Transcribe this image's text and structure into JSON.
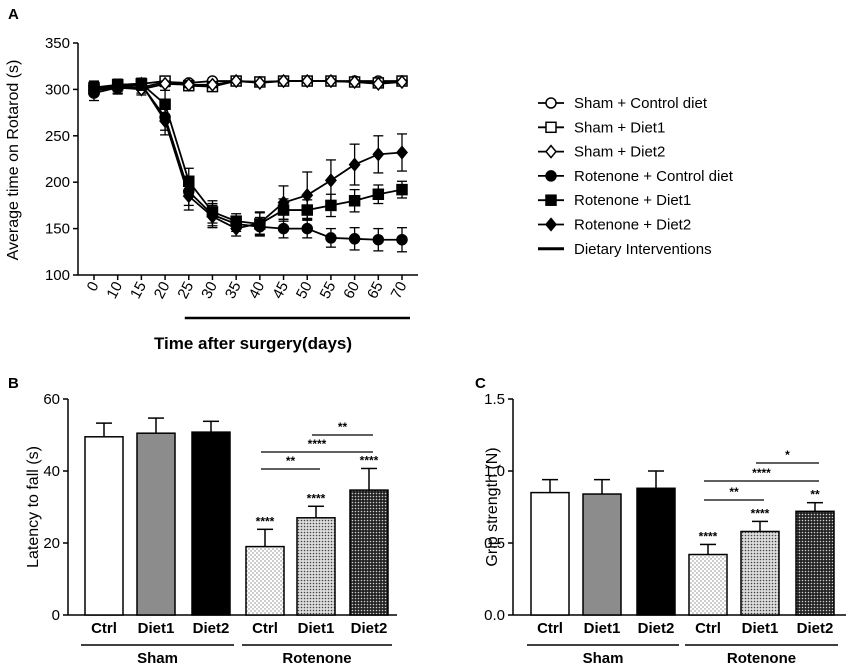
{
  "chart_data": [
    {
      "panel": "A",
      "type": "line",
      "ylabel": "Average time on Rotarod (s)",
      "xlabel": "Time after surgery(days)",
      "ylim": [
        100,
        350
      ],
      "yticks": [
        "100",
        "150",
        "200",
        "250",
        "300",
        "350"
      ],
      "x": [
        0,
        10,
        15,
        20,
        25,
        30,
        35,
        40,
        45,
        50,
        55,
        60,
        65,
        70
      ],
      "xticks": [
        "0",
        "10",
        "15",
        "20",
        "25",
        "30",
        "35",
        "40",
        "45",
        "50",
        "55",
        "60",
        "65",
        "70"
      ],
      "intervention_range": [
        25,
        70
      ],
      "series": [
        {
          "name": "Sham + Control diet",
          "marker": "open-circle",
          "values": [
            303,
            302,
            302,
            308,
            307,
            309,
            309,
            308,
            309,
            309,
            309,
            309,
            309,
            309
          ],
          "errors": [
            6,
            6,
            6,
            3,
            3,
            2,
            2,
            2,
            2,
            2,
            2,
            2,
            2,
            2
          ]
        },
        {
          "name": "Sham + Diet1",
          "marker": "open-square",
          "values": [
            300,
            305,
            306,
            309,
            304,
            303,
            309,
            308,
            309,
            309,
            309,
            308,
            307,
            309
          ],
          "errors": [
            6,
            6,
            5,
            3,
            3,
            3,
            2,
            2,
            2,
            2,
            2,
            2,
            2,
            2
          ]
        },
        {
          "name": "Sham + Diet2",
          "marker": "open-diamond",
          "values": [
            299,
            302,
            300,
            306,
            305,
            305,
            309,
            307,
            309,
            309,
            309,
            308,
            306,
            308
          ],
          "errors": [
            6,
            6,
            6,
            3,
            3,
            3,
            2,
            2,
            2,
            2,
            2,
            2,
            2,
            2
          ]
        },
        {
          "name": "Rotenone + Control diet",
          "marker": "filled-circle",
          "values": [
            296,
            302,
            305,
            270,
            190,
            165,
            155,
            152,
            150,
            150,
            140,
            139,
            138,
            138
          ],
          "errors": [
            8,
            7,
            6,
            14,
            15,
            12,
            8,
            10,
            10,
            10,
            10,
            12,
            12,
            13
          ]
        },
        {
          "name": "Rotenone + Diet1",
          "marker": "filled-square",
          "values": [
            302,
            305,
            306,
            284,
            201,
            168,
            158,
            155,
            170,
            170,
            175,
            180,
            187,
            192
          ],
          "errors": [
            6,
            6,
            6,
            15,
            14,
            12,
            8,
            12,
            12,
            11,
            12,
            12,
            10,
            9
          ]
        },
        {
          "name": "Rotenone + Diet2",
          "marker": "filled-diamond",
          "values": [
            300,
            304,
            306,
            266,
            185,
            163,
            150,
            156,
            178,
            186,
            202,
            219,
            230,
            232
          ],
          "errors": [
            6,
            6,
            6,
            15,
            15,
            12,
            8,
            12,
            18,
            25,
            22,
            22,
            20,
            20
          ]
        }
      ],
      "legend": [
        "Sham + Control diet",
        "Sham + Diet1",
        "Sham + Diet2",
        "Rotenone + Control diet",
        "Rotenone + Diet1",
        "Rotenone + Diet2",
        "Dietary Interventions"
      ]
    },
    {
      "panel": "B",
      "type": "bar",
      "ylabel": "Latency to fall (s)",
      "ylim": [
        0,
        60
      ],
      "yticks": [
        "0",
        "20",
        "40",
        "60"
      ],
      "categories": [
        "Ctrl",
        "Diet1",
        "Diet2",
        "Ctrl",
        "Diet1",
        "Diet2"
      ],
      "groups": [
        "Sham",
        "Rotenone"
      ],
      "values": [
        49.5,
        50.5,
        50.8,
        19,
        27,
        34.7
      ],
      "errors": [
        3.8,
        4.2,
        3.0,
        4.8,
        3.2,
        6.0
      ],
      "fills": [
        "white",
        "gray",
        "black",
        "dots-light",
        "dots-medium",
        "dots-dark"
      ],
      "bar_labels": [
        "",
        "",
        "",
        "****",
        "****",
        "****"
      ],
      "comparisons": [
        {
          "from": 3,
          "to": 4,
          "label": "**"
        },
        {
          "from": 3,
          "to": 5,
          "label": "****"
        },
        {
          "from": 4,
          "to": 5,
          "label": "**"
        }
      ]
    },
    {
      "panel": "C",
      "type": "bar",
      "ylabel": "Grip strength (N)",
      "ylim": [
        0,
        1.5
      ],
      "yticks": [
        "0.0",
        "0.5",
        "1.0",
        "1.5"
      ],
      "categories": [
        "Ctrl",
        "Diet1",
        "Diet2",
        "Ctrl",
        "Diet1",
        "Diet2"
      ],
      "groups": [
        "Sham",
        "Rotenone"
      ],
      "values": [
        0.85,
        0.84,
        0.88,
        0.42,
        0.58,
        0.72
      ],
      "errors": [
        0.09,
        0.1,
        0.12,
        0.07,
        0.07,
        0.06
      ],
      "fills": [
        "white",
        "gray",
        "black",
        "dots-light",
        "dots-medium",
        "dots-dark"
      ],
      "bar_labels": [
        "",
        "",
        "",
        "****",
        "****",
        "**"
      ],
      "comparisons": [
        {
          "from": 3,
          "to": 4,
          "label": "**"
        },
        {
          "from": 3,
          "to": 5,
          "label": "****"
        },
        {
          "from": 4,
          "to": 5,
          "label": "*"
        }
      ]
    }
  ]
}
